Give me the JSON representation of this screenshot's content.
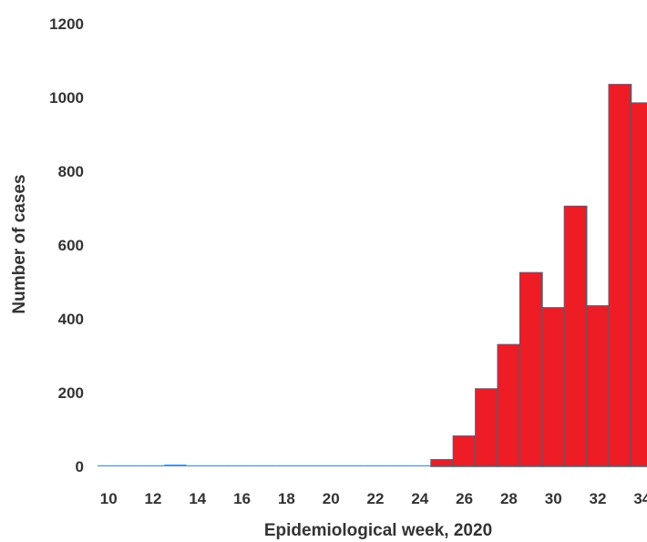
{
  "chart_data": {
    "type": "bar",
    "title": "",
    "xlabel": "Epidemiological week, 2020",
    "ylabel": "Number of cases",
    "ylim": [
      0,
      1200
    ],
    "yticks": [
      0,
      200,
      400,
      600,
      800,
      1000,
      1200
    ],
    "xticks": [
      "10",
      "12",
      "14",
      "16",
      "18",
      "20",
      "22",
      "24",
      "26",
      "28",
      "30",
      "32",
      "34"
    ],
    "grid": false,
    "legend": "none",
    "bar_color": "#ee1c24",
    "bar_edge_color": "#5a5a6e",
    "low_bar_color": "#4a90d9",
    "series": [
      {
        "x": [
          10,
          11,
          12,
          13,
          14,
          15,
          16,
          17,
          18,
          19,
          20,
          21,
          22,
          23,
          24,
          25,
          26,
          27,
          28,
          29,
          30,
          31,
          32,
          33,
          34
        ],
        "values": [
          0,
          2,
          2,
          5,
          2,
          0,
          0,
          0,
          0,
          0,
          0,
          2,
          1,
          2,
          1,
          18,
          82,
          210,
          330,
          525,
          430,
          705,
          435,
          1035,
          985
        ]
      }
    ]
  }
}
